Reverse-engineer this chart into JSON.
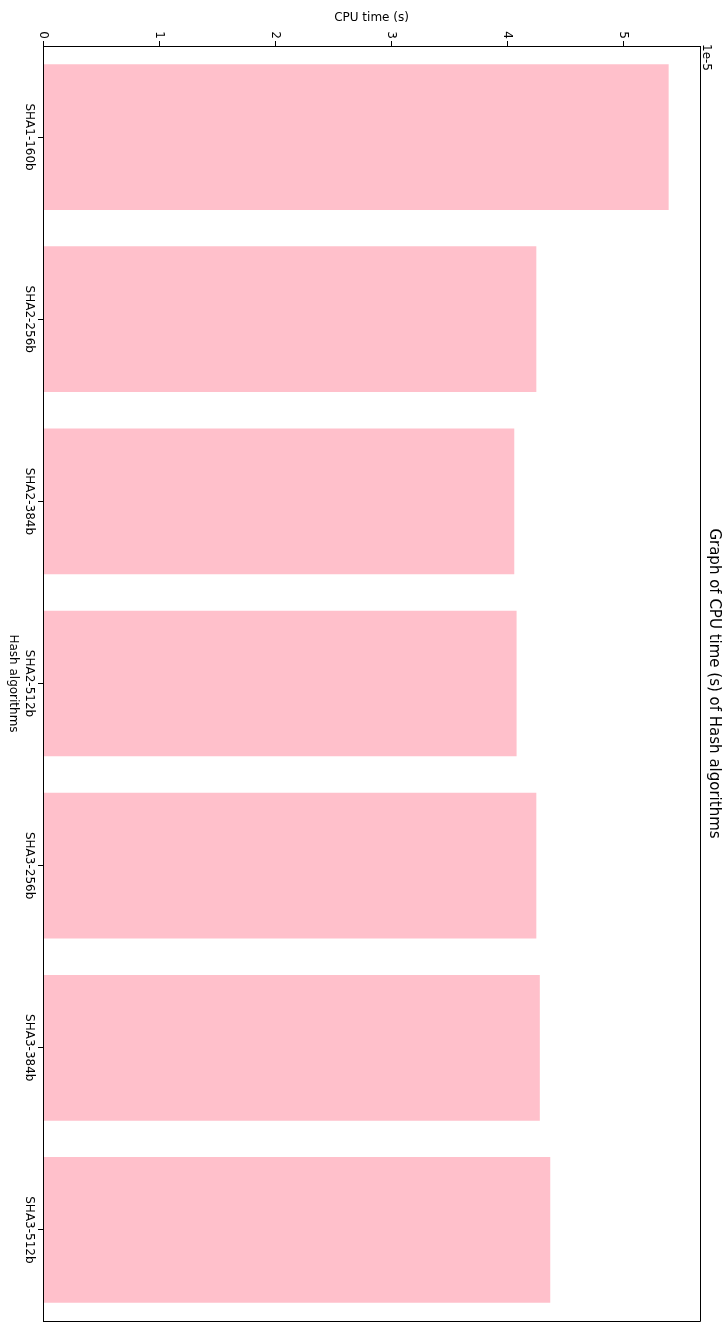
{
  "chart_data": {
    "type": "bar",
    "orientation": "horizontal",
    "title": "Graph of CPU time (s) of Hash algorithms",
    "xlabel": "CPU time (s)",
    "ylabel": "Hash algorithms",
    "categories": [
      "SHA1-160b",
      "SHA2-256b",
      "SHA2-384b",
      "SHA2-512b",
      "SHA3-256b",
      "SHA3-384b",
      "SHA3-512b"
    ],
    "values": [
      5.39,
      4.25,
      4.06,
      4.08,
      4.25,
      4.28,
      4.37
    ],
    "color": "#ffc0cb",
    "xlim": [
      0,
      5.66
    ],
    "xticks": [
      0,
      1,
      2,
      3,
      4,
      5
    ],
    "annotations": [
      "1e-5"
    ],
    "grid": false,
    "legend": false
  }
}
